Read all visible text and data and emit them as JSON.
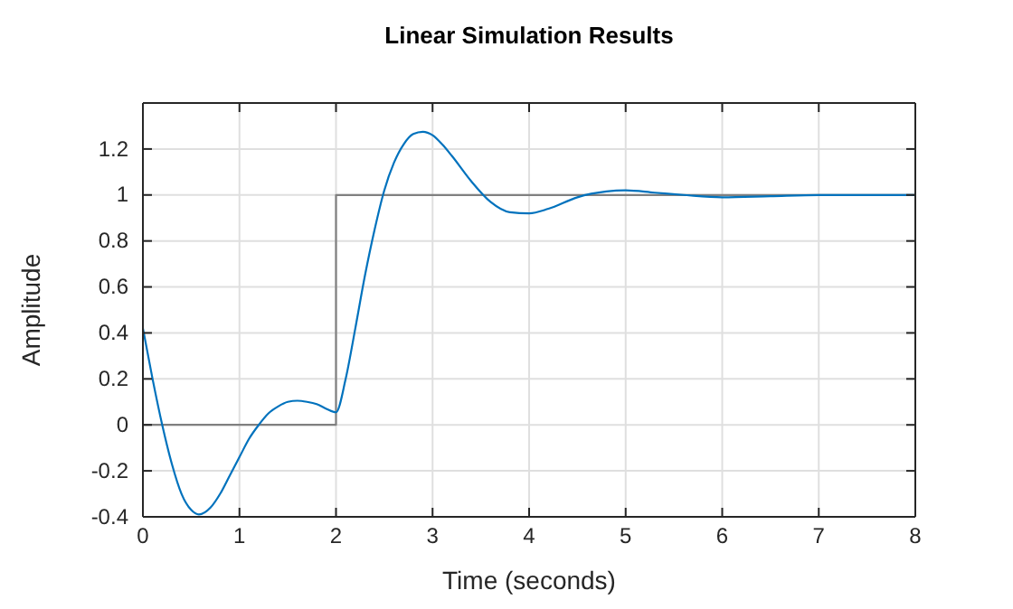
{
  "chart_data": {
    "type": "line",
    "title": "Linear Simulation Results",
    "xlabel": "Time (seconds)",
    "ylabel": "Amplitude",
    "xlim": [
      0,
      8
    ],
    "xticks": [
      0,
      1,
      2,
      3,
      4,
      5,
      6,
      7,
      8
    ],
    "ylim": [
      -0.4,
      1.4
    ],
    "yticks": [
      -0.4,
      -0.2,
      0,
      0.2,
      0.4,
      0.6,
      0.8,
      1,
      1.2,
      {
        "value": 1.4,
        "label": null
      }
    ],
    "grid": true,
    "series": [
      {
        "color": "#808080",
        "x": [
          0,
          2,
          2,
          8
        ],
        "values": [
          0,
          0,
          1,
          1
        ]
      },
      {
        "color": "#0072bd",
        "x": [
          0,
          0.1,
          0.2,
          0.3,
          0.4,
          0.5,
          0.58,
          0.7,
          0.8,
          0.9,
          1.0,
          1.1,
          1.2,
          1.3,
          1.4,
          1.5,
          1.6,
          1.7,
          1.8,
          1.9,
          2.0,
          2.1,
          2.2,
          2.3,
          2.4,
          2.5,
          2.6,
          2.7,
          2.8,
          2.9,
          3.0,
          3.1,
          3.2,
          3.4,
          3.6,
          3.8,
          4.0,
          4.2,
          4.5,
          4.8,
          5.0,
          5.3,
          5.6,
          6.0,
          6.5,
          7.0,
          8.0
        ],
        "values": [
          0.42,
          0.2,
          0.0,
          -0.17,
          -0.3,
          -0.37,
          -0.39,
          -0.36,
          -0.3,
          -0.22,
          -0.14,
          -0.06,
          0.0,
          0.05,
          0.08,
          0.1,
          0.105,
          0.1,
          0.09,
          0.07,
          0.055,
          0.2,
          0.42,
          0.65,
          0.85,
          1.02,
          1.14,
          1.22,
          1.265,
          1.275,
          1.26,
          1.22,
          1.17,
          1.06,
          0.97,
          0.925,
          0.92,
          0.94,
          0.99,
          1.015,
          1.02,
          1.01,
          1.0,
          0.99,
          0.995,
          1.0,
          1.0
        ]
      }
    ]
  }
}
